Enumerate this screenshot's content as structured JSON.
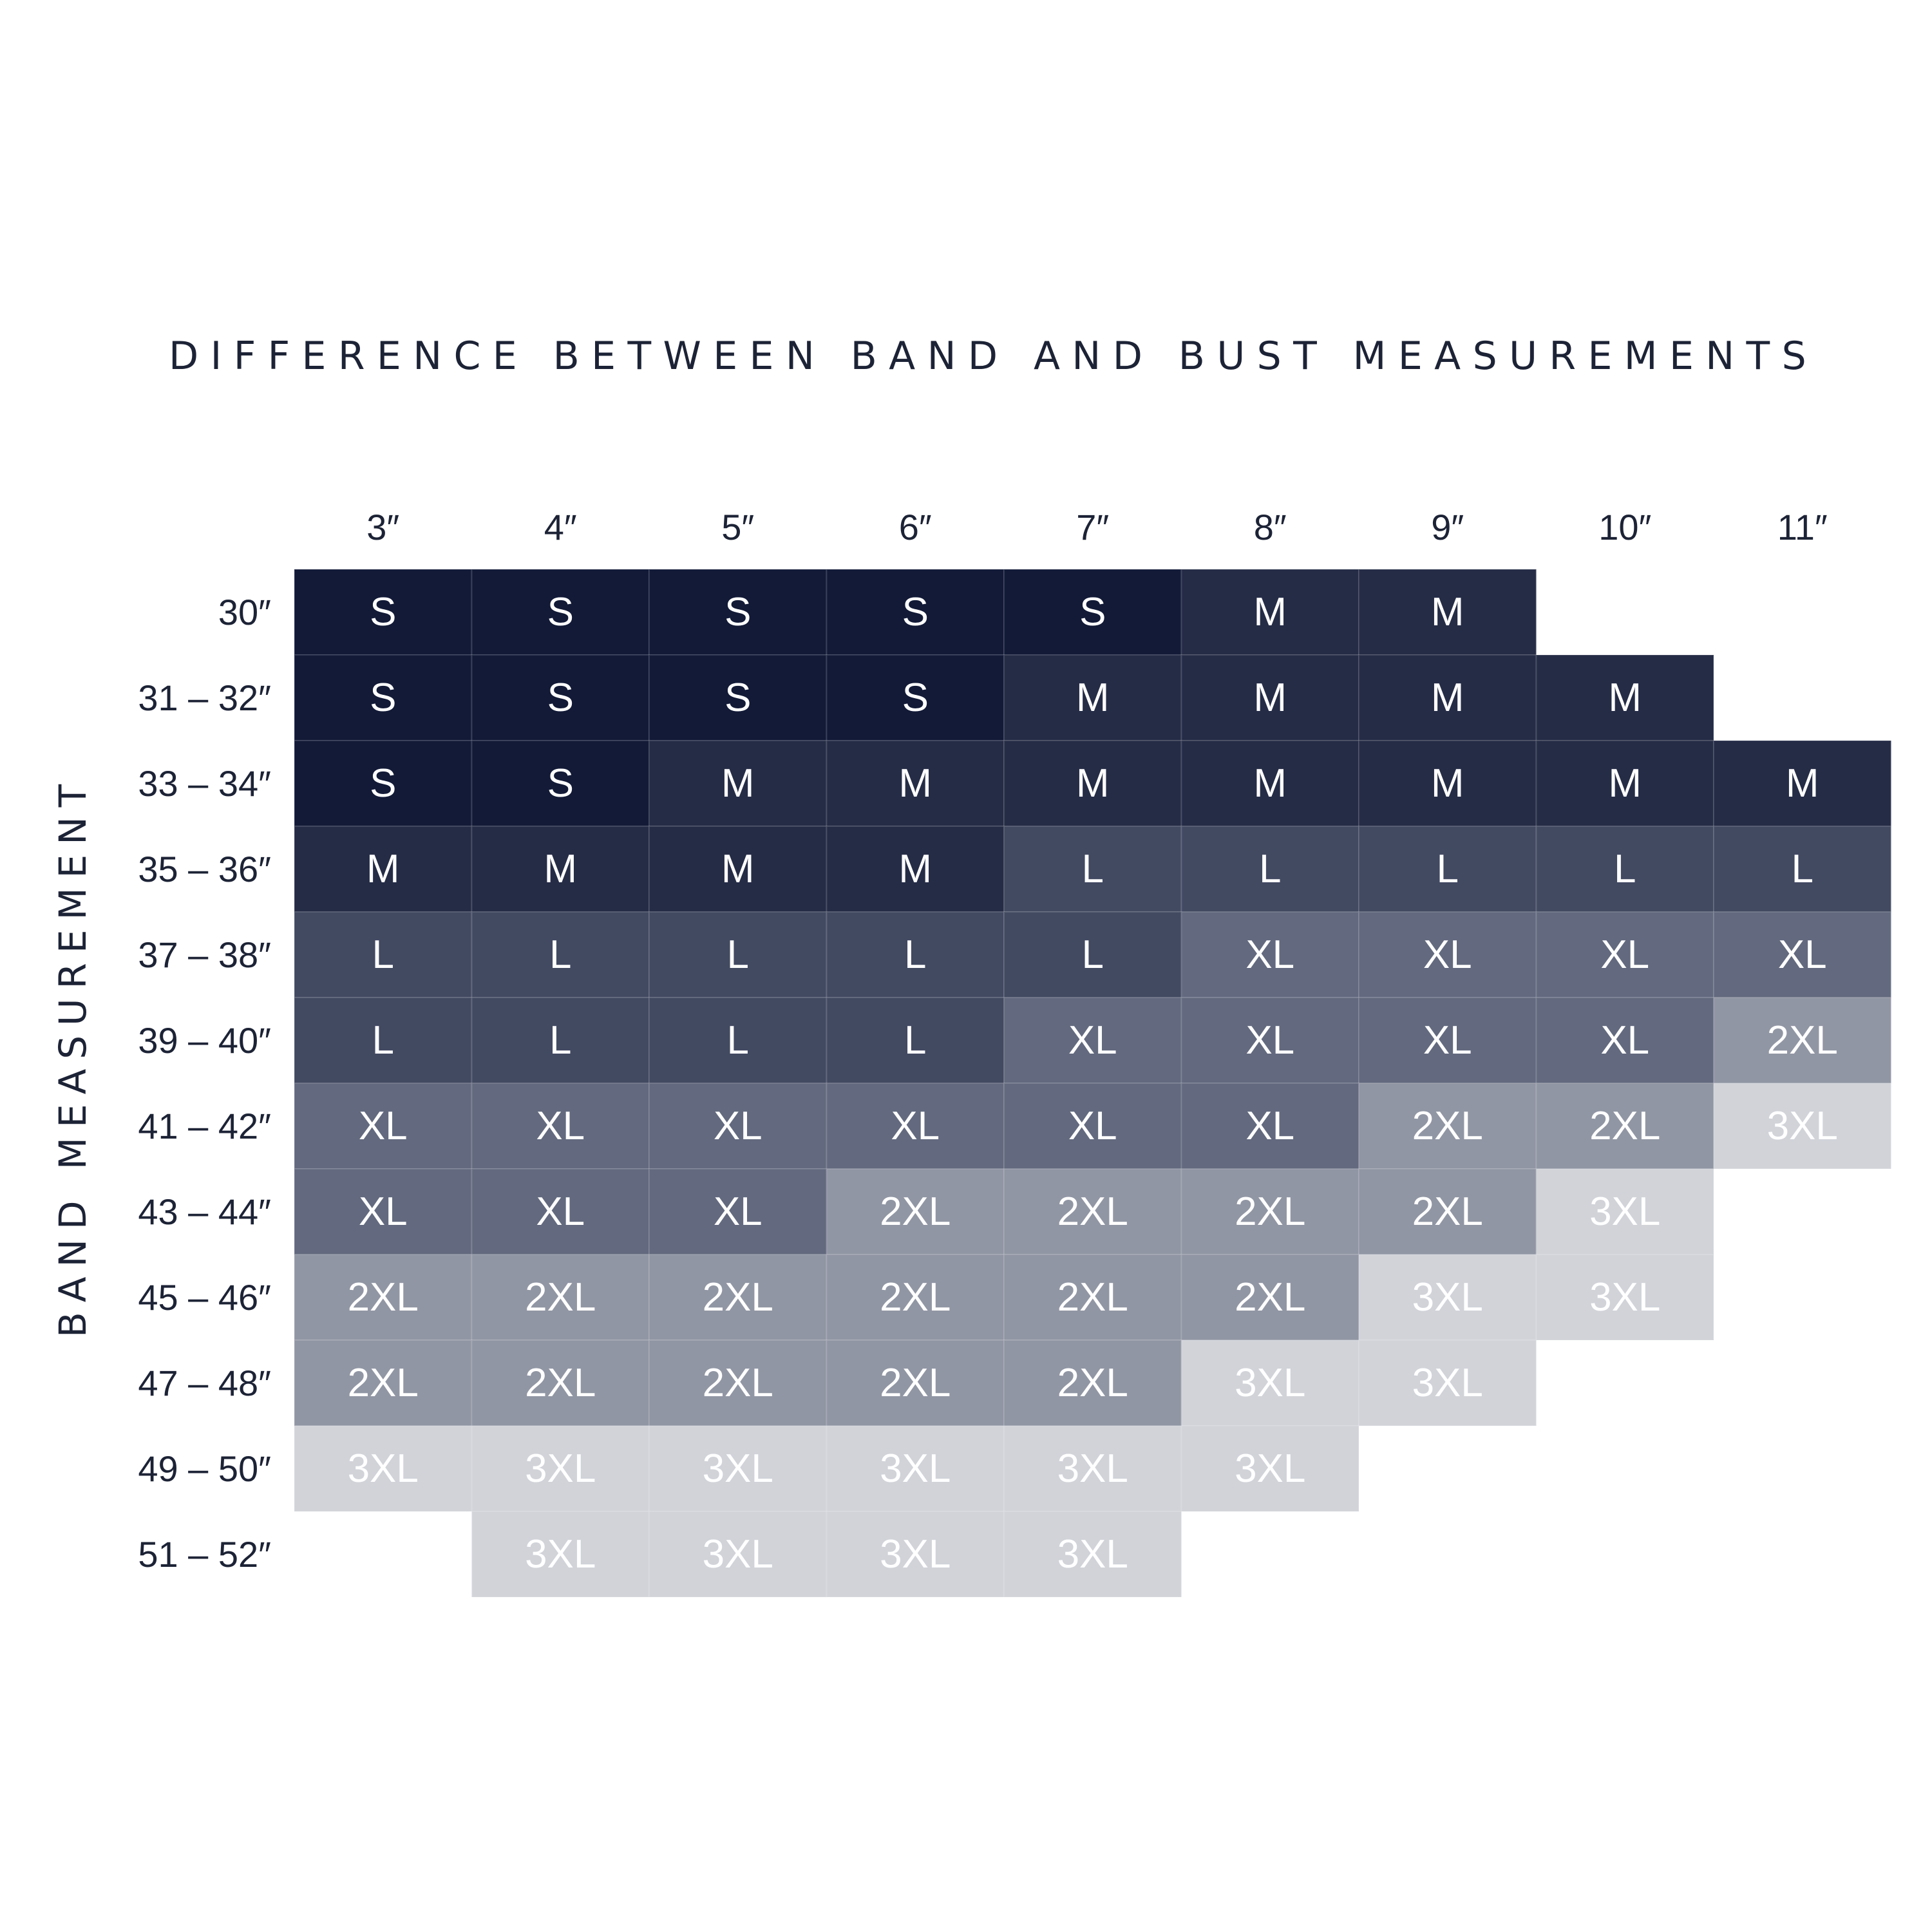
{
  "chart_data": {
    "type": "heatmap",
    "title": "DIFFERENCE BETWEEN BAND AND BUST MEASUREMENTS",
    "ylabel": "BAND MEASUREMENT",
    "columns": [
      "3″",
      "4″",
      "5″",
      "6″",
      "7″",
      "8″",
      "9″",
      "10″",
      "11″"
    ],
    "rows": [
      "30″",
      "31 – 32″",
      "33 – 34″",
      "35 – 36″",
      "37 – 38″",
      "39 – 40″",
      "41 – 42″",
      "43 – 44″",
      "45 – 46″",
      "47 – 48″",
      "49 – 50″",
      "51 – 52″"
    ],
    "cells": [
      [
        "S",
        "S",
        "S",
        "S",
        "S",
        "M",
        "M",
        null,
        null
      ],
      [
        "S",
        "S",
        "S",
        "S",
        "M",
        "M",
        "M",
        "M",
        null
      ],
      [
        "S",
        "S",
        "M",
        "M",
        "M",
        "M",
        "M",
        "M",
        "M"
      ],
      [
        "M",
        "M",
        "M",
        "M",
        "L",
        "L",
        "L",
        "L",
        "L"
      ],
      [
        "L",
        "L",
        "L",
        "L",
        "L",
        "XL",
        "XL",
        "XL",
        "XL"
      ],
      [
        "L",
        "L",
        "L",
        "L",
        "XL",
        "XL",
        "XL",
        "XL",
        "2XL"
      ],
      [
        "XL",
        "XL",
        "XL",
        "XL",
        "XL",
        "XL",
        "2XL",
        "2XL",
        "3XL"
      ],
      [
        "XL",
        "XL",
        "XL",
        "2XL",
        "2XL",
        "2XL",
        "2XL",
        "3XL",
        null
      ],
      [
        "2XL",
        "2XL",
        "2XL",
        "2XL",
        "2XL",
        "2XL",
        "3XL",
        "3XL",
        null
      ],
      [
        "2XL",
        "2XL",
        "2XL",
        "2XL",
        "2XL",
        "3XL",
        "3XL",
        null,
        null
      ],
      [
        "3XL",
        "3XL",
        "3XL",
        "3XL",
        "3XL",
        "3XL",
        null,
        null,
        null
      ],
      [
        null,
        "3XL",
        "3XL",
        "3XL",
        "3XL",
        null,
        null,
        null,
        null
      ]
    ],
    "size_colors": {
      "S": "#121a37",
      "M": "#252c46",
      "L": "#424a62",
      "XL": "#636a7f",
      "2XL": "#9196a4",
      "3XL": "#d1d3d9"
    },
    "grid_line_color": "#ffffff"
  }
}
